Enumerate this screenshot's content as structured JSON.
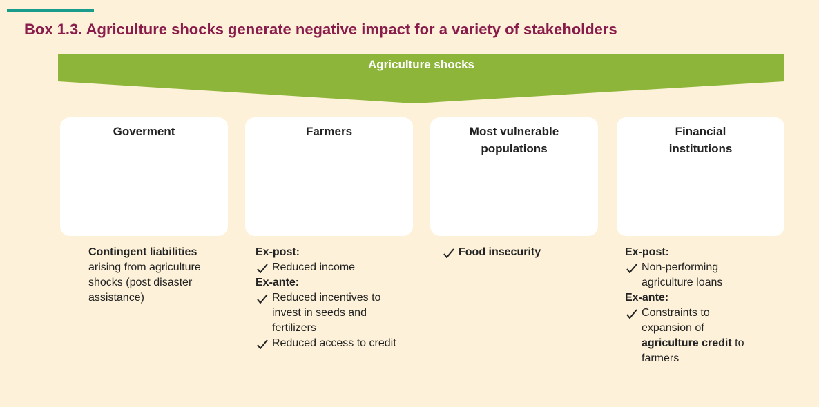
{
  "header": {
    "title": "Box 1.3. Agriculture shocks generate negative impact for a variety of stakeholders"
  },
  "banner": {
    "label": "Agriculture shocks"
  },
  "columns": [
    {
      "title": "Goverment",
      "text": [
        {
          "text": "Contingent liabilities",
          "bold": true
        },
        {
          "text": " arising from agriculture shocks (post disaster assistance)"
        }
      ]
    },
    {
      "title": "Farmers",
      "sections": [
        {
          "heading": "Ex-post:",
          "items": [
            [
              {
                "text": "Reduced income"
              }
            ]
          ]
        },
        {
          "heading": "Ex-ante:",
          "items": [
            [
              {
                "text": "Reduced incentives to invest in seeds and  fertilizers"
              }
            ],
            [
              {
                "text": "Reduced access to credit"
              }
            ]
          ]
        }
      ]
    },
    {
      "title": "Most vulnerable populations",
      "sections": [
        {
          "items": [
            [
              {
                "text": "Food insecurity",
                "bold": true
              }
            ]
          ]
        }
      ]
    },
    {
      "title": "Financial institutions",
      "sections": [
        {
          "heading": "Ex-post:",
          "items": [
            [
              {
                "text": "Non-performing agriculture loans"
              }
            ]
          ]
        },
        {
          "heading": "Ex-ante:",
          "items": [
            [
              {
                "text": "Constraints to expansion of "
              },
              {
                "text": "agriculture credit",
                "bold": true
              },
              {
                "text": " to farmers"
              }
            ]
          ]
        }
      ]
    }
  ]
}
